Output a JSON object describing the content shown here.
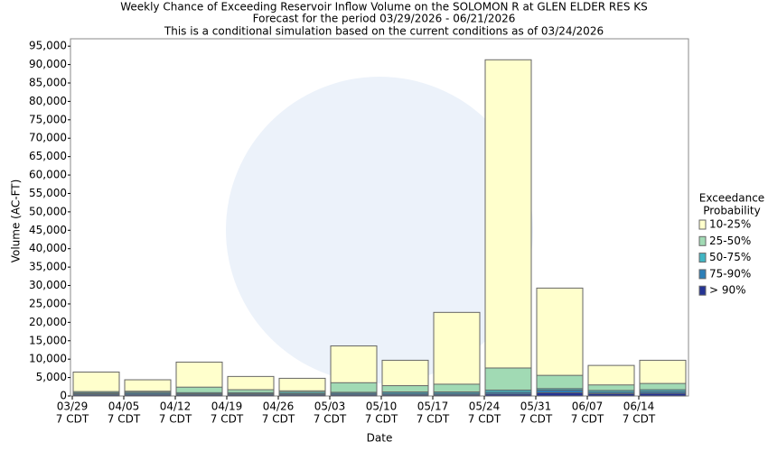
{
  "chart_data": {
    "type": "overlap-bar",
    "title": [
      "Weekly Chance of Exceeding Reservoir Inflow Volume on the SOLOMON R at GLEN ELDER RES KS",
      "Forecast for the period 03/29/2026 - 06/21/2026",
      "This is a conditional simulation based on the current conditions as of 03/24/2026"
    ],
    "x_label": "Date",
    "y_label": "Volume (AC-FT)",
    "legend_title": [
      "Exceedance",
      "Probability"
    ],
    "categories": [
      [
        "03/29",
        "7 CDT"
      ],
      [
        "04/05",
        "7 CDT"
      ],
      [
        "04/12",
        "7 CDT"
      ],
      [
        "04/19",
        "7 CDT"
      ],
      [
        "04/26",
        "7 CDT"
      ],
      [
        "05/03",
        "7 CDT"
      ],
      [
        "05/10",
        "7 CDT"
      ],
      [
        "05/17",
        "7 CDT"
      ],
      [
        "05/24",
        "7 CDT"
      ],
      [
        "05/31",
        "7 CDT"
      ],
      [
        "06/07",
        "7 CDT"
      ],
      [
        "06/14",
        "7 CDT"
      ]
    ],
    "series": [
      {
        "name": "10-25%",
        "color": "#ffffcc",
        "values": [
          6500,
          4400,
          9200,
          5300,
          4800,
          13600,
          9700,
          22700,
          91300,
          29300,
          8300,
          9700
        ]
      },
      {
        "name": "25-50%",
        "color": "#a1dab4",
        "values": [
          1200,
          1300,
          2400,
          1700,
          1400,
          3600,
          2800,
          3200,
          7600,
          5600,
          3000,
          3400
        ]
      },
      {
        "name": "50-75%",
        "color": "#41b6c4",
        "values": [
          900,
          1000,
          900,
          900,
          1000,
          1000,
          1100,
          1100,
          1600,
          2000,
          1500,
          1700
        ]
      },
      {
        "name": "75-90%",
        "color": "#2c7fb8",
        "values": [
          600,
          700,
          600,
          600,
          600,
          700,
          700,
          700,
          1000,
          1600,
          1000,
          1200
        ]
      },
      {
        "name": "> 90%",
        "color": "#253494",
        "values": [
          300,
          300,
          300,
          300,
          300,
          300,
          300,
          300,
          500,
          900,
          600,
          700
        ]
      }
    ],
    "ylim": [
      0,
      97000
    ],
    "yticks": [
      0,
      {
        "value": 5000,
        "label": "5,000"
      },
      {
        "value": 10000,
        "label": "10,000"
      },
      {
        "value": 15000,
        "label": "15,000"
      },
      {
        "value": 20000,
        "label": "20,000"
      },
      {
        "value": 25000,
        "label": "25,000"
      },
      {
        "value": 30000,
        "label": "30,000"
      },
      {
        "value": 35000,
        "label": "35,000"
      },
      {
        "value": 40000,
        "label": "40,000"
      },
      {
        "value": 45000,
        "label": "45,000"
      },
      {
        "value": 50000,
        "label": "50,000"
      },
      {
        "value": 55000,
        "label": "55,000"
      },
      {
        "value": 60000,
        "label": "60,000"
      },
      {
        "value": 65000,
        "label": "65,000"
      },
      {
        "value": 70000,
        "label": "70,000"
      },
      {
        "value": 75000,
        "label": "75,000"
      },
      {
        "value": 80000,
        "label": "80,000"
      },
      {
        "value": 85000,
        "label": "85,000"
      },
      {
        "value": 90000,
        "label": "90,000"
      },
      {
        "value": 95000,
        "label": "95,000"
      }
    ],
    "grid": false
  }
}
